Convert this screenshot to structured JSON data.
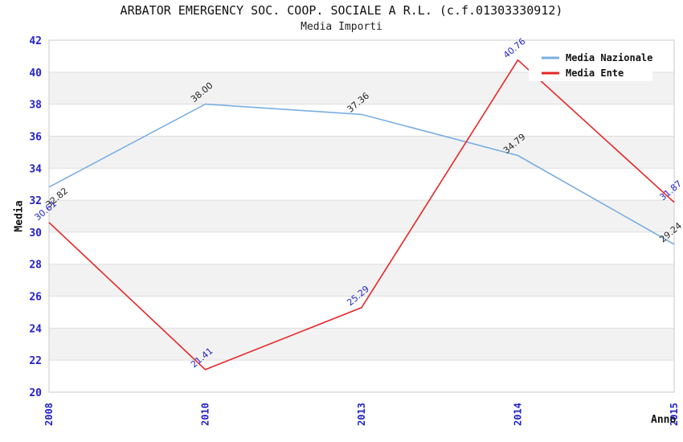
{
  "header": {
    "title": "ARBATOR EMERGENCY SOC. COOP. SOCIALE A R.L. (c.f.01303330912)",
    "subtitle": "Media Importi"
  },
  "chart_data": {
    "type": "line",
    "title": "ARBATOR EMERGENCY SOC. COOP. SOCIALE A R.L. (c.f.01303330912)",
    "subtitle": "Media Importi",
    "categories": [
      "2008",
      "2010",
      "2013",
      "2014",
      "2015"
    ],
    "series": [
      {
        "name": "Media Nazionale",
        "values": [
          32.82,
          38.0,
          37.36,
          34.79,
          29.24
        ],
        "color": "#79aee3",
        "label_color": "#222222"
      },
      {
        "name": "Media Ente",
        "values": [
          30.61,
          21.41,
          25.29,
          40.76,
          31.87
        ],
        "color": "#e62626",
        "label_color": "#2222cc"
      }
    ],
    "xlabel": "Anno",
    "ylabel": "Media",
    "ylim": [
      20,
      42
    ],
    "ytick_step": 2,
    "yticks": [
      20,
      22,
      24,
      26,
      28,
      30,
      32,
      34,
      36,
      38,
      40,
      42
    ],
    "grid": "horizontal",
    "legend_position": "top-right",
    "tick_color": "#2222cc",
    "band_color": "#f2f2f2",
    "gridline_color": "#dedede",
    "border_color": "#c9c9c9"
  }
}
